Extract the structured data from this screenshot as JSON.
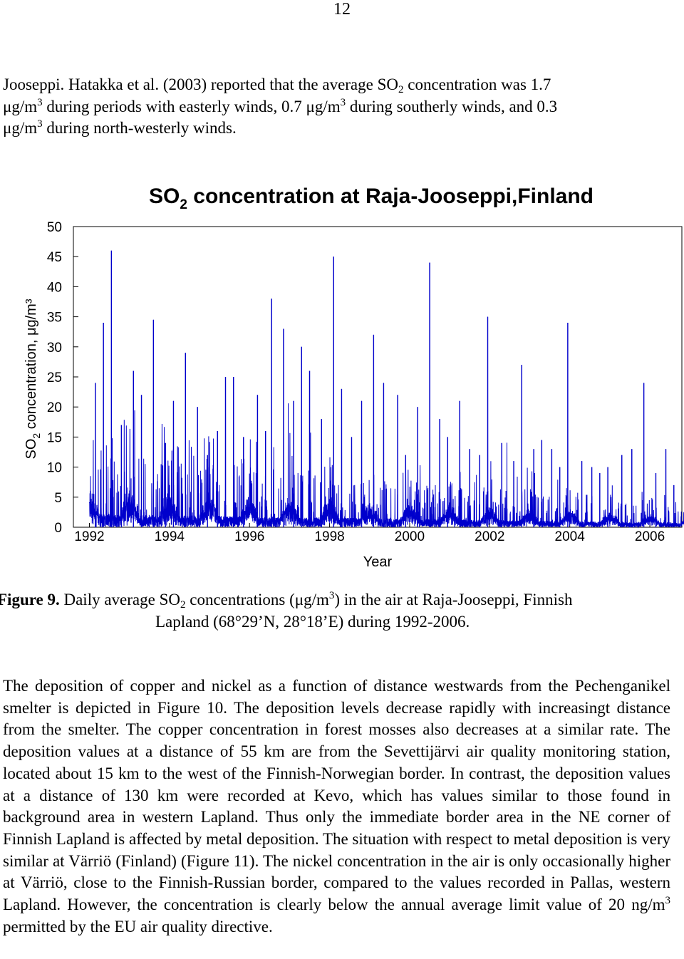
{
  "page_number": "12",
  "intro": {
    "line1_a": "Jooseppi. Hatakka et al. (2003) reported that the average SO",
    "line1_sub": "2",
    "line1_b": " concentration was 1.7",
    "line2_a": "μg/m",
    "line2_sup": "3",
    "line2_b": " during periods with easterly winds, 0.7 μg/m",
    "line2_sup2": "3",
    "line2_c": " during southerly winds, and 0.3",
    "line3_a": "μg/m",
    "line3_sup": "3",
    "line3_b": " during north-westerly winds."
  },
  "chart_data": {
    "type": "line",
    "title": "SO",
    "title_sub": "2",
    "title_rest": " concentration at Raja-Jooseppi,Finland",
    "ylabel": "SO",
    "ylabel_sub": "2",
    "ylabel_rest": " concentration, μg/m³",
    "xlabel": "Year",
    "ylim": [
      0,
      50
    ],
    "xlim": [
      1991.6,
      2006.8
    ],
    "yticks": [
      0,
      5,
      10,
      15,
      20,
      25,
      30,
      35,
      40,
      45,
      50
    ],
    "xticks": [
      {
        "label": "1992",
        "value": 1992
      },
      {
        "label": "1994",
        "value": 1994
      },
      {
        "label": "1996",
        "value": 1996
      },
      {
        "label": "1998",
        "value": 1998
      },
      {
        "label": "2000",
        "value": 2000
      },
      {
        "label": "2002",
        "value": 2002
      },
      {
        "label": "2004",
        "value": 2004
      },
      {
        "label": "2006",
        "value": 2006
      }
    ],
    "series_color": "#0000cc",
    "grid": false,
    "peaks": [
      {
        "x": 1992.15,
        "y": 24
      },
      {
        "x": 1992.35,
        "y": 34
      },
      {
        "x": 1992.55,
        "y": 46
      },
      {
        "x": 1992.8,
        "y": 17
      },
      {
        "x": 1993.1,
        "y": 26
      },
      {
        "x": 1993.3,
        "y": 22
      },
      {
        "x": 1993.6,
        "y": 34.5
      },
      {
        "x": 1993.9,
        "y": 14
      },
      {
        "x": 1994.1,
        "y": 21
      },
      {
        "x": 1994.4,
        "y": 29
      },
      {
        "x": 1994.7,
        "y": 20
      },
      {
        "x": 1994.95,
        "y": 12
      },
      {
        "x": 1995.2,
        "y": 16
      },
      {
        "x": 1995.4,
        "y": 25
      },
      {
        "x": 1995.6,
        "y": 25
      },
      {
        "x": 1995.85,
        "y": 15
      },
      {
        "x": 1996.2,
        "y": 22
      },
      {
        "x": 1996.4,
        "y": 16
      },
      {
        "x": 1996.55,
        "y": 38
      },
      {
        "x": 1996.85,
        "y": 33
      },
      {
        "x": 1997.1,
        "y": 21
      },
      {
        "x": 1997.3,
        "y": 30
      },
      {
        "x": 1997.5,
        "y": 26
      },
      {
        "x": 1997.8,
        "y": 18
      },
      {
        "x": 1998.1,
        "y": 45
      },
      {
        "x": 1998.3,
        "y": 23
      },
      {
        "x": 1998.55,
        "y": 15
      },
      {
        "x": 1998.8,
        "y": 21
      },
      {
        "x": 1999.1,
        "y": 32
      },
      {
        "x": 1999.35,
        "y": 24
      },
      {
        "x": 1999.7,
        "y": 22
      },
      {
        "x": 1999.9,
        "y": 12
      },
      {
        "x": 2000.2,
        "y": 20
      },
      {
        "x": 2000.5,
        "y": 44
      },
      {
        "x": 2000.75,
        "y": 18
      },
      {
        "x": 2000.95,
        "y": 15
      },
      {
        "x": 2001.25,
        "y": 21
      },
      {
        "x": 2001.5,
        "y": 13
      },
      {
        "x": 2001.75,
        "y": 12
      },
      {
        "x": 2001.95,
        "y": 35
      },
      {
        "x": 2002.3,
        "y": 14
      },
      {
        "x": 2002.6,
        "y": 11
      },
      {
        "x": 2002.8,
        "y": 27
      },
      {
        "x": 2003.1,
        "y": 13
      },
      {
        "x": 2003.3,
        "y": 14.5
      },
      {
        "x": 2003.55,
        "y": 13
      },
      {
        "x": 2003.75,
        "y": 10
      },
      {
        "x": 2003.95,
        "y": 34
      },
      {
        "x": 2004.3,
        "y": 11
      },
      {
        "x": 2004.55,
        "y": 10
      },
      {
        "x": 2004.75,
        "y": 9
      },
      {
        "x": 2004.95,
        "y": 10
      },
      {
        "x": 2005.3,
        "y": 12
      },
      {
        "x": 2005.55,
        "y": 13
      },
      {
        "x": 2005.85,
        "y": 24
      },
      {
        "x": 2006.15,
        "y": 9
      },
      {
        "x": 2006.4,
        "y": 13
      },
      {
        "x": 2006.6,
        "y": 7
      }
    ]
  },
  "caption": {
    "label": "Figure 9.",
    "text_a": " Daily average SO",
    "text_sub": "2",
    "text_b": " concentrations (μg/m",
    "text_sup": "3",
    "text_c": ") in the air at Raja-Jooseppi, Finnish",
    "line2": "Lapland (68°29’N, 28°18’E) during 1992-2006."
  },
  "body": {
    "p1": "The deposition of copper and nickel as a function of distance westwards from the Pechenganikel smelter is depicted in Figure 10. The deposition levels decrease rapidly with increasingt distance from the smelter. The copper concentration in forest mosses also decreases at a similar rate. The deposition values at a distance of 55 km are from the Sevettijärvi air quality monitoring station, located about 15 km to the west of the Finnish-Norwegian border. In contrast, the deposition values at a distance of 130 km were recorded at Kevo, which has values similar to those found in background area in western Lapland. Thus only the immediate border area in the NE corner of Finnish Lapland is affected by metal deposition. The situation with respect to metal deposition is very similar at Värriö (Finland) (Figure 11). The nickel concentration in the air is only occasionally higher at Värriö, close to the Finnish-Russian border, compared to the values recorded in Pallas, western Lapland. However, the concentration is clearly below the annual average limit value of 20 ng/m",
    "p1_sup": "3",
    "p1_end": " permitted by the EU air quality directive."
  }
}
